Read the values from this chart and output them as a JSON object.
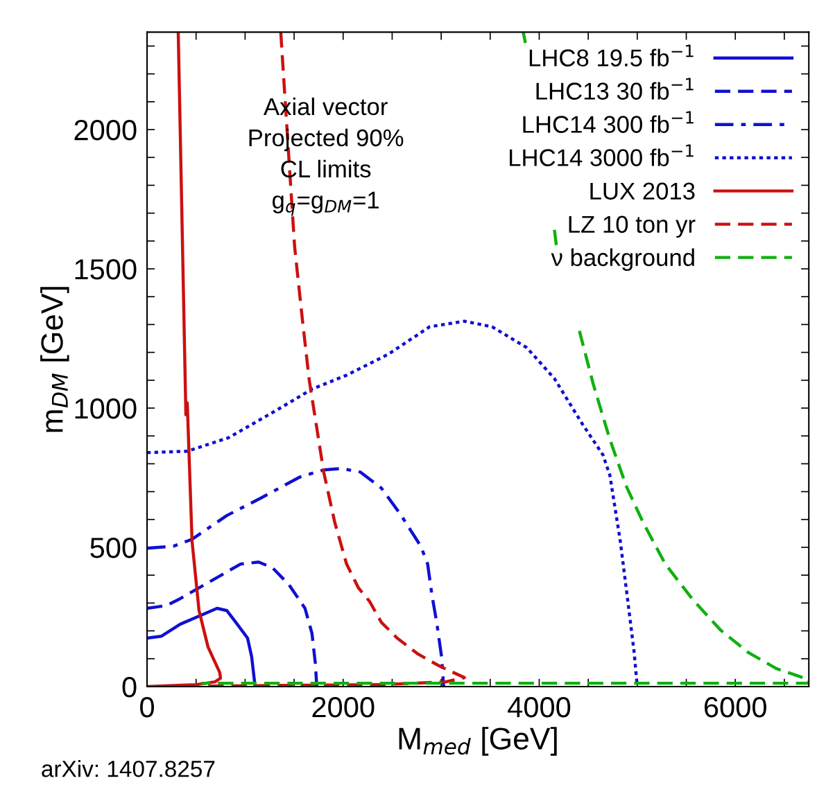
{
  "chart_data": {
    "type": "line",
    "xlabel": "M$_{med}$ [GeV]",
    "ylabel": "m$_{DM}$ [GeV]",
    "xlim": [
      0,
      6750
    ],
    "ylim": [
      0,
      2350
    ],
    "xticks": [
      0,
      {
        "value": 500,
        "label": null
      },
      {
        "value": 1000,
        "label": null
      },
      {
        "value": 1500,
        "label": null
      },
      2000,
      {
        "value": 2500,
        "label": null
      },
      {
        "value": 3000,
        "label": null
      },
      {
        "value": 3500,
        "label": null
      },
      4000,
      {
        "value": 4500,
        "label": null
      },
      {
        "value": 5000,
        "label": null
      },
      {
        "value": 5500,
        "label": null
      },
      6000,
      {
        "value": 6500,
        "label": null
      }
    ],
    "yticks": [
      0,
      {
        "value": 100,
        "label": null
      },
      {
        "value": 200,
        "label": null
      },
      {
        "value": 300,
        "label": null
      },
      {
        "value": 400,
        "label": null
      },
      500,
      {
        "value": 600,
        "label": null
      },
      {
        "value": 700,
        "label": null
      },
      {
        "value": 800,
        "label": null
      },
      {
        "value": 900,
        "label": null
      },
      1000,
      {
        "value": 1100,
        "label": null
      },
      {
        "value": 1200,
        "label": null
      },
      {
        "value": 1300,
        "label": null
      },
      {
        "value": 1400,
        "label": null
      },
      1500,
      {
        "value": 1600,
        "label": null
      },
      {
        "value": 1700,
        "label": null
      },
      {
        "value": 1800,
        "label": null
      },
      {
        "value": 1900,
        "label": null
      },
      2000,
      {
        "value": 2100,
        "label": null
      },
      {
        "value": 2200,
        "label": null
      },
      {
        "value": 2300,
        "label": null
      }
    ],
    "grid": false,
    "legend": "top right",
    "annotations": [
      "Axial vector\nProjected 90%\nCL limits\ng$_{q}$=g$_{DM}$=1",
      "arXiv: 1407.8257"
    ],
    "series": [
      {
        "name": "LHC8 19.5 fb$^{−1}$",
        "color": "#1010d0",
        "line_style": "solid",
        "x": [
          0,
          148,
          339,
          551,
          714,
          813,
          905,
          1025,
          1067,
          1102
        ],
        "values": [
          174,
          181,
          224,
          256,
          281,
          273,
          231,
          174,
          107,
          0
        ]
      },
      {
        "name": "LHC13 30 fb$^{−1}$",
        "color": "#1010d0",
        "line_style": "dashed",
        "x": [
          0,
          198,
          339,
          622,
          954,
          1138,
          1279,
          1449,
          1611,
          1682,
          1717,
          1731
        ],
        "values": [
          281,
          291,
          316,
          373,
          440,
          447,
          427,
          365,
          281,
          191,
          82,
          0
        ]
      },
      {
        "name": "LHC14 300 fb$^{−1}$",
        "color": "#1010d0",
        "line_style": "dashdot",
        "x": [
          0,
          269,
          459,
          813,
          1166,
          1562,
          1802,
          1986,
          2177,
          2389,
          2580,
          2792,
          2862,
          2905,
          2954,
          3004,
          3025
        ],
        "values": [
          497,
          504,
          529,
          614,
          678,
          753,
          778,
          783,
          770,
          713,
          621,
          504,
          440,
          330,
          231,
          107,
          0
        ]
      },
      {
        "name": "LHC14 3000 fb$^{−1}$",
        "color": "#1010d0",
        "line_style": "dotted",
        "x": [
          0,
          410,
          834,
          1329,
          1682,
          2035,
          2459,
          2883,
          3237,
          3519,
          3873,
          4155,
          4438,
          4650,
          4721,
          4827,
          4898,
          4968,
          5000
        ],
        "values": [
          840,
          845,
          894,
          994,
          1068,
          1118,
          1193,
          1292,
          1312,
          1292,
          1217,
          1106,
          944,
          832,
          758,
          522,
          323,
          124,
          0
        ]
      },
      {
        "name": "LUX 2013",
        "color": "#cc1010",
        "line_style": "solid",
        "x": [
          318,
          396,
          410,
          459,
          530,
          622,
          742,
          749,
          693,
          502,
          0
        ],
        "values": [
          2350,
          976,
          1019,
          522,
          273,
          142,
          50,
          30,
          17,
          7,
          0
        ]
      },
      {
        "name": "LZ 10 ton yr",
        "color": "#cc1010",
        "line_style": "dashed",
        "x": [
          1364,
          1378,
          1505,
          1583,
          1654,
          1710,
          1802,
          1915,
          2035,
          2155,
          2269,
          2389,
          2551,
          2763,
          2975,
          3237,
          3046,
          2389,
          622
        ],
        "values": [
          2350,
          2271,
          1580,
          1322,
          1101,
          976,
          770,
          589,
          440,
          355,
          306,
          231,
          174,
          117,
          75,
          32,
          17,
          7,
          2
        ]
      },
      {
        "name": "ν background",
        "color": "#10b010",
        "line_style": "dashed",
        "x": [
          3837,
          3859,
          3870,
          4155,
          4177,
          4190,
          4410,
          4551,
          4721,
          4890,
          5060,
          5286,
          5569,
          5852,
          6134,
          6417,
          6750,
          6750,
          550
        ],
        "values": [
          2350,
          2311,
          null,
          1640,
          1578,
          null,
          1277,
          1086,
          887,
          718,
          589,
          440,
          311,
          202,
          122,
          65,
          25,
          12,
          12
        ]
      }
    ]
  }
}
